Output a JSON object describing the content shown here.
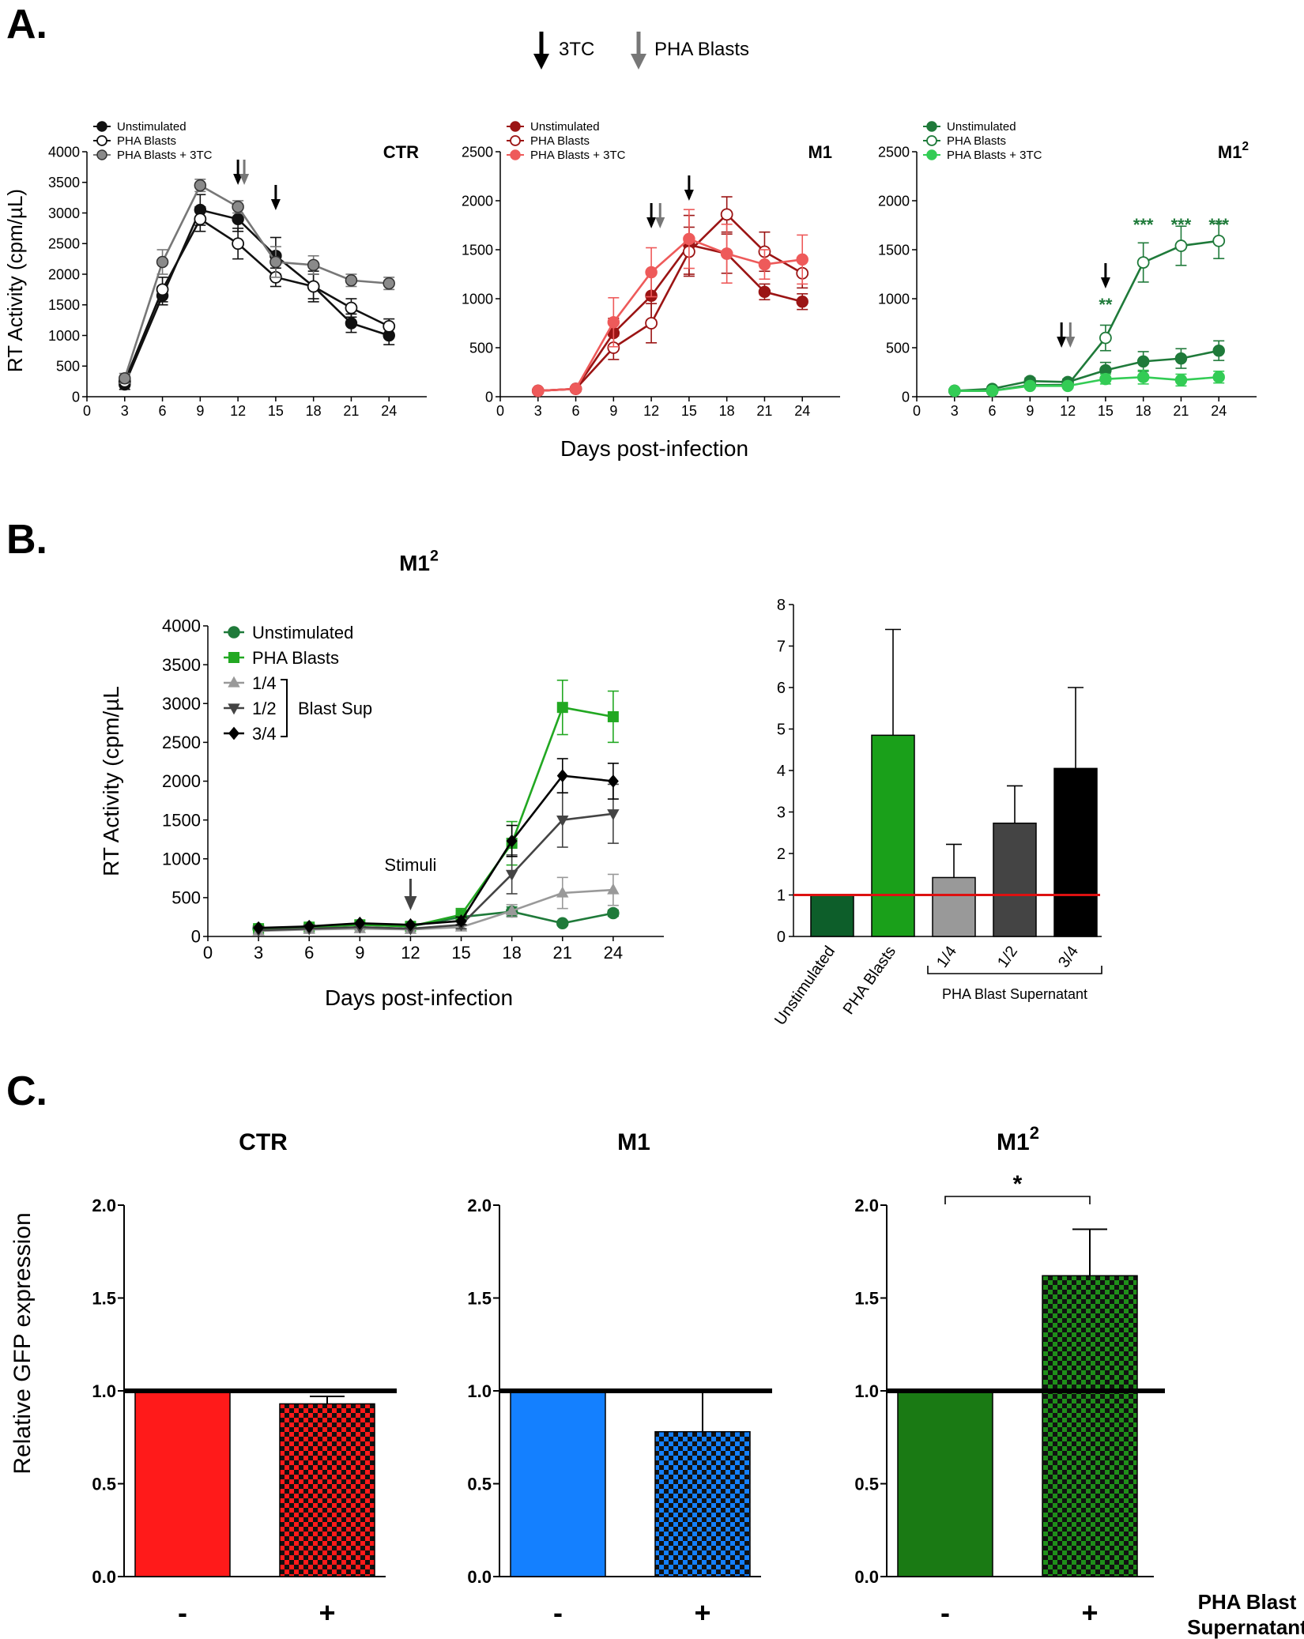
{
  "figure": {
    "panel_labels": [
      "A.",
      "B.",
      "C."
    ],
    "arrow_legend": {
      "black": "3TC",
      "gray": "PHA Blasts"
    },
    "panelA_ylabel": "RT Activity (cpm/µL)",
    "panelA_xlabel": "Days post-infection",
    "panelB_xlabel": "Days post-infection",
    "panelC_ylabel": "Relative GFP expression",
    "panelC_footer_line1": "PHA Blast",
    "panelC_footer_line2": "Supernatant",
    "colors": {
      "ctr_line": "#111111",
      "ctr_gray": "#777777",
      "m1_dark": "#9b1414",
      "m1_light": "#ee5a5a",
      "m12_dark": "#1f7a3a",
      "m12_light": "#33cc55",
      "red": "#ff1a1a",
      "blue": "#1480ff",
      "green": "#1a7a14",
      "refline": "#dd1111"
    }
  },
  "chart_data": [
    {
      "id": "A-CTR",
      "type": "line",
      "title": "CTR",
      "xlabel": "",
      "ylabel": "RT Activity (cpm/µL)",
      "xlim": [
        0,
        27
      ],
      "ylim": [
        0,
        4000
      ],
      "xticks": [
        0,
        3,
        6,
        9,
        12,
        15,
        18,
        21,
        24
      ],
      "yticks": [
        0,
        500,
        1000,
        1500,
        2000,
        2500,
        3000,
        3500,
        4000
      ],
      "legend": "top-left",
      "series": [
        {
          "name": "Unstimulated",
          "marker": "filled",
          "color": "#111111",
          "x": [
            3,
            6,
            9,
            12,
            15,
            18,
            21,
            24
          ],
          "values": [
            200,
            1650,
            3050,
            2900,
            2300,
            1800,
            1200,
            1000
          ],
          "errors": [
            80,
            150,
            250,
            200,
            300,
            200,
            150,
            150
          ]
        },
        {
          "name": "PHA Blasts",
          "marker": "open",
          "color": "#111111",
          "x": [
            3,
            6,
            9,
            12,
            15,
            18,
            21,
            24
          ],
          "values": [
            250,
            1750,
            2900,
            2500,
            1950,
            1800,
            1450,
            1150
          ],
          "errors": [
            80,
            200,
            200,
            250,
            150,
            250,
            150,
            120
          ]
        },
        {
          "name": "PHA Blasts + 3TC",
          "marker": "gray",
          "color": "#777777",
          "x": [
            3,
            6,
            9,
            12,
            15,
            18,
            21,
            24
          ],
          "values": [
            300,
            2200,
            3450,
            3100,
            2200,
            2150,
            1900,
            1850
          ],
          "errors": [
            80,
            200,
            100,
            100,
            250,
            150,
            100,
            100
          ]
        }
      ],
      "arrows": [
        {
          "x": 12,
          "color": "black"
        },
        {
          "x": 12.5,
          "color": "gray"
        },
        {
          "x": 15,
          "color": "black"
        }
      ]
    },
    {
      "id": "A-M1",
      "type": "line",
      "title": "M1",
      "xlabel": "Days post-infection",
      "ylabel": "",
      "xlim": [
        0,
        27
      ],
      "ylim": [
        0,
        2500
      ],
      "xticks": [
        0,
        3,
        6,
        9,
        12,
        15,
        18,
        21,
        24
      ],
      "yticks": [
        0,
        500,
        1000,
        1500,
        2000,
        2500
      ],
      "legend": "top-left",
      "series": [
        {
          "name": "Unstimulated",
          "marker": "filled",
          "color": "#9b1414",
          "x": [
            3,
            6,
            9,
            12,
            15,
            18,
            21,
            24
          ],
          "values": [
            60,
            80,
            650,
            1030,
            1550,
            1460,
            1070,
            970
          ],
          "errors": [
            10,
            20,
            150,
            250,
            300,
            200,
            80,
            80
          ]
        },
        {
          "name": "PHA Blasts",
          "marker": "open",
          "color": "#9b1414",
          "x": [
            3,
            6,
            9,
            12,
            15,
            18,
            21,
            24
          ],
          "values": [
            60,
            80,
            500,
            750,
            1480,
            1860,
            1480,
            1260
          ],
          "errors": [
            10,
            20,
            120,
            200,
            250,
            180,
            200,
            150
          ]
        },
        {
          "name": "PHA Blasts + 3TC",
          "marker": "light",
          "color": "#ee5a5a",
          "x": [
            3,
            6,
            9,
            12,
            15,
            18,
            21,
            24
          ],
          "values": [
            60,
            80,
            760,
            1270,
            1610,
            1460,
            1350,
            1400
          ],
          "errors": [
            10,
            20,
            250,
            250,
            300,
            300,
            150,
            250
          ]
        }
      ],
      "arrows": [
        {
          "x": 12,
          "color": "black"
        },
        {
          "x": 12.7,
          "color": "gray"
        },
        {
          "x": 15,
          "color": "black"
        }
      ]
    },
    {
      "id": "A-M12",
      "type": "line",
      "title": "M1",
      "title_sup": "2",
      "xlabel": "",
      "ylabel": "",
      "xlim": [
        0,
        27
      ],
      "ylim": [
        0,
        2500
      ],
      "xticks": [
        0,
        3,
        6,
        9,
        12,
        15,
        18,
        21,
        24
      ],
      "yticks": [
        0,
        500,
        1000,
        1500,
        2000,
        2500
      ],
      "legend": "top-left",
      "series": [
        {
          "name": "Unstimulated",
          "marker": "filled",
          "color": "#1f7a3a",
          "x": [
            3,
            6,
            9,
            12,
            15,
            18,
            21,
            24
          ],
          "values": [
            60,
            80,
            160,
            150,
            270,
            360,
            390,
            470
          ],
          "errors": [
            10,
            20,
            30,
            30,
            80,
            100,
            100,
            100
          ]
        },
        {
          "name": "PHA Blasts",
          "marker": "open",
          "color": "#1f7a3a",
          "x": [
            3,
            6,
            9,
            12,
            15,
            18,
            21,
            24
          ],
          "values": [
            60,
            60,
            120,
            120,
            600,
            1370,
            1540,
            1590
          ],
          "errors": [
            10,
            20,
            30,
            30,
            130,
            200,
            200,
            180
          ]
        },
        {
          "name": "PHA Blasts + 3TC",
          "marker": "light",
          "color": "#33cc55",
          "x": [
            3,
            6,
            9,
            12,
            15,
            18,
            21,
            24
          ],
          "values": [
            60,
            60,
            110,
            110,
            180,
            200,
            170,
            200
          ],
          "errors": [
            10,
            15,
            20,
            20,
            50,
            70,
            60,
            60
          ]
        }
      ],
      "arrows": [
        {
          "x": 11.5,
          "color": "black"
        },
        {
          "x": 12.2,
          "color": "gray"
        },
        {
          "x": 15,
          "color": "black"
        }
      ],
      "annotations": [
        {
          "x": 15,
          "text": "**"
        },
        {
          "x": 18,
          "text": "***"
        },
        {
          "x": 21,
          "text": "***"
        },
        {
          "x": 24,
          "text": "***"
        }
      ]
    },
    {
      "id": "B-line",
      "type": "line",
      "title": "M1",
      "title_sup": "2",
      "xlabel": "Days post-infection",
      "ylabel": "RT Activity (cpm/µL",
      "xlim": [
        0,
        27
      ],
      "ylim": [
        0,
        4000
      ],
      "xticks": [
        0,
        3,
        6,
        9,
        12,
        15,
        18,
        21,
        24
      ],
      "yticks": [
        0,
        500,
        1000,
        1500,
        2000,
        2500,
        3000,
        3500,
        4000
      ],
      "legend": "top-left",
      "legend_group_label": "Blast Sup",
      "arrow_label": "Stimuli",
      "arrow_x": 12,
      "series": [
        {
          "name": "Unstimulated",
          "marker": "circle",
          "color": "#1f7a3a",
          "x": [
            3,
            6,
            9,
            12,
            15,
            18,
            21,
            24
          ],
          "values": [
            100,
            120,
            150,
            130,
            250,
            320,
            170,
            300
          ],
          "errors": [
            0,
            0,
            0,
            0,
            50,
            60,
            30,
            40
          ]
        },
        {
          "name": "PHA Blasts",
          "marker": "square",
          "color": "#22a822",
          "x": [
            3,
            6,
            9,
            12,
            15,
            18,
            21,
            24
          ],
          "values": [
            100,
            120,
            150,
            130,
            280,
            1200,
            2950,
            2830
          ],
          "errors": [
            0,
            0,
            0,
            0,
            80,
            280,
            350,
            330
          ]
        },
        {
          "name": "1/4",
          "marker": "triangle-up",
          "color": "#999999",
          "x": [
            3,
            6,
            9,
            12,
            15,
            18,
            21,
            24
          ],
          "values": [
            70,
            90,
            100,
            90,
            120,
            330,
            560,
            600
          ],
          "errors": [
            0,
            0,
            0,
            0,
            30,
            80,
            200,
            200
          ]
        },
        {
          "name": "1/2",
          "marker": "triangle-down",
          "color": "#444444",
          "x": [
            3,
            6,
            9,
            12,
            15,
            18,
            21,
            24
          ],
          "values": [
            80,
            100,
            120,
            100,
            150,
            800,
            1500,
            1580
          ],
          "errors": [
            0,
            0,
            0,
            0,
            50,
            250,
            350,
            380
          ]
        },
        {
          "name": "3/4",
          "marker": "diamond",
          "color": "#000000",
          "x": [
            3,
            6,
            9,
            12,
            15,
            18,
            21,
            24
          ],
          "values": [
            110,
            130,
            170,
            150,
            200,
            1230,
            2070,
            2000
          ],
          "errors": [
            0,
            0,
            0,
            0,
            50,
            200,
            220,
            230
          ]
        }
      ]
    },
    {
      "id": "B-bar",
      "type": "bar",
      "title": "",
      "xlabel": "",
      "ylabel": "",
      "ylim": [
        0,
        8
      ],
      "yticks": [
        0,
        1,
        2,
        3,
        4,
        5,
        6,
        7,
        8
      ],
      "reference_line": 1,
      "categories": [
        "Unstimulated",
        "PHA Blasts",
        "1/4",
        "1/2",
        "3/4"
      ],
      "values": [
        1.0,
        4.85,
        1.42,
        2.73,
        4.05
      ],
      "errors": [
        0,
        2.55,
        0.8,
        0.9,
        1.95
      ],
      "colors": [
        "#0d5e2a",
        "#1aa01a",
        "#999999",
        "#444444",
        "#000000"
      ],
      "group_label": "PHA Blast Supernatant"
    },
    {
      "id": "C-CTR",
      "type": "bar",
      "title": "CTR",
      "ylabel": "Relative GFP expression",
      "ylim": [
        0,
        2.0
      ],
      "yticks": [
        0.0,
        0.5,
        1.0,
        1.5,
        2.0
      ],
      "categories": [
        "-",
        "+"
      ],
      "values": [
        1.0,
        0.93
      ],
      "errors": [
        0,
        0.04
      ],
      "color": "#ff1a1a",
      "pattern": "checker"
    },
    {
      "id": "C-M1",
      "type": "bar",
      "title": "M1",
      "ylim": [
        0,
        2.0
      ],
      "yticks": [
        0.0,
        0.5,
        1.0,
        1.5,
        2.0
      ],
      "categories": [
        "-",
        "+"
      ],
      "values": [
        1.0,
        0.78
      ],
      "errors": [
        0,
        0.22
      ],
      "color": "#1480ff",
      "pattern": "checker"
    },
    {
      "id": "C-M12",
      "type": "bar",
      "title": "M1",
      "title_sup": "2",
      "ylim": [
        0,
        2.0
      ],
      "yticks": [
        0.0,
        0.5,
        1.0,
        1.5,
        2.0
      ],
      "categories": [
        "-",
        "+"
      ],
      "values": [
        1.0,
        1.62
      ],
      "errors": [
        0,
        0.25
      ],
      "color": "#1a7a14",
      "pattern": "checker",
      "significance": "*"
    }
  ]
}
